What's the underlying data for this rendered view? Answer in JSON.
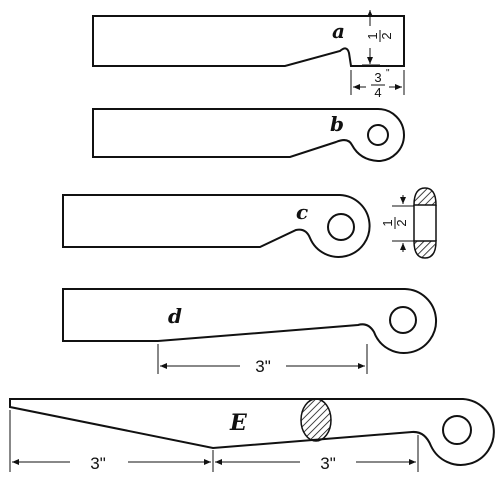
{
  "labels": {
    "a": "a",
    "b": "b",
    "c": "c",
    "d": "d",
    "e": "E"
  },
  "dimensions": {
    "a_height": {
      "num": "1",
      "den": "2",
      "unit": "\""
    },
    "a_width": {
      "num": "3",
      "den": "4",
      "unit": "\""
    },
    "c_thickness": {
      "num": "1",
      "den": "2",
      "unit": "\""
    },
    "d_length": "3\"",
    "e_left_length": "3\"",
    "e_right_length": "3\""
  },
  "colors": {
    "ink": "#111111",
    "paper": "#ffffff"
  }
}
